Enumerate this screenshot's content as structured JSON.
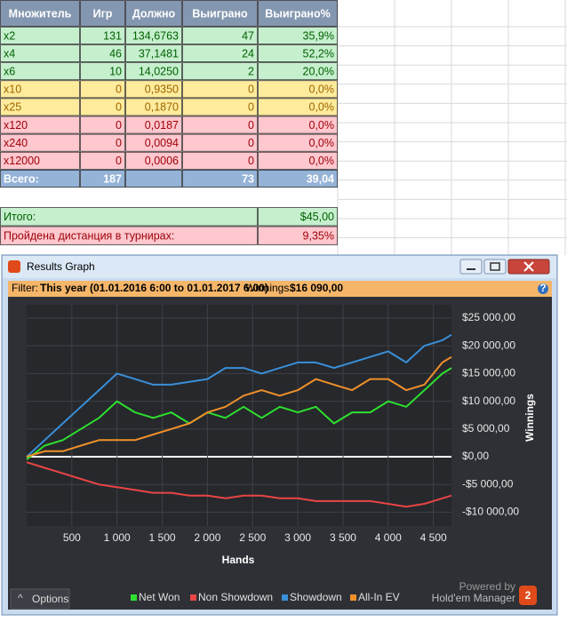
{
  "table": {
    "header": [
      "Множитель",
      "Игр",
      "Должно",
      "Выиграно",
      "Выиграно%"
    ],
    "rows": [
      [
        "x2",
        "131",
        "134,6763",
        "47",
        "35,9%"
      ],
      [
        "x4",
        "46",
        "37,1481",
        "24",
        "52,2%"
      ],
      [
        "x6",
        "10",
        "14,0250",
        "2",
        "20,0%"
      ],
      [
        "x10",
        "0",
        "0,9350",
        "0",
        "0,0%"
      ],
      [
        "x25",
        "0",
        "0,1870",
        "0",
        "0,0%"
      ],
      [
        "x120",
        "0",
        "0,0187",
        "0",
        "0,0%"
      ],
      [
        "x240",
        "0",
        "0,0094",
        "0",
        "0,0%"
      ],
      [
        "x12000",
        "0",
        "0,0006",
        "0",
        "0,0%"
      ]
    ],
    "total": [
      "Всего:",
      "187",
      "73",
      "39,04"
    ]
  },
  "summary": [
    [
      "Итого:",
      "$45,00"
    ],
    [
      "Пройдена дистанция в турнирах:",
      "9,35%"
    ]
  ],
  "window": {
    "title": "Results Graph",
    "filter_label": "Filter:",
    "filter_value": "This year (01.01.2016 6:00 to 01.01.2017 6:00)",
    "winnings_label": "Winnings:",
    "winnings_value": "$16 090,00",
    "options": "Options",
    "powered_by": "Powered by",
    "brand": "Hold'em Manager",
    "brand_mark": "2"
  },
  "chart_data": {
    "type": "line",
    "x_label": "Hands",
    "y_label": "Winnings",
    "grid": true,
    "x": [
      0,
      200,
      400,
      600,
      800,
      1000,
      1200,
      1400,
      1600,
      1800,
      2000,
      2200,
      2400,
      2600,
      2800,
      3000,
      3200,
      3400,
      3600,
      3800,
      4000,
      4200,
      4400,
      4600,
      4700
    ],
    "xlim": [
      0,
      4700
    ],
    "xticks": [
      500,
      {
        "value": 1000,
        "label": "1 000"
      },
      {
        "value": 1500,
        "label": "1 500"
      },
      {
        "value": 2000,
        "label": "2 000"
      },
      {
        "value": 2500,
        "label": "2 500"
      },
      {
        "value": 3000,
        "label": "3 000"
      },
      {
        "value": 3500,
        "label": "3 500"
      },
      {
        "value": 4000,
        "label": "4 000"
      },
      {
        "value": 4500,
        "label": "4 500"
      }
    ],
    "ylim": [
      -12500,
      27400
    ],
    "yticks": [
      {
        "value": 25000,
        "label": "$25 000,00"
      },
      {
        "value": 20000,
        "label": "$20 000,00"
      },
      {
        "value": 15000,
        "label": "$15 000,00"
      },
      {
        "value": 10000,
        "label": "$10 000,00"
      },
      {
        "value": 5000,
        "label": "$5 000,00"
      },
      {
        "value": 0,
        "label": "$0,00"
      },
      {
        "value": -5000,
        "label": "-$5 000,00"
      },
      {
        "value": -10000,
        "label": "-$10 000,00"
      }
    ],
    "series": [
      {
        "name": "Net Won",
        "color": "#2ee02e",
        "values": [
          -500,
          2000,
          3000,
          5000,
          7000,
          10000,
          8000,
          7000,
          8000,
          6000,
          8000,
          7000,
          9000,
          7000,
          9000,
          8000,
          9000,
          6000,
          8000,
          8000,
          10000,
          9000,
          12000,
          15000,
          16000
        ]
      },
      {
        "name": "Non Showdown",
        "color": "#e84545",
        "values": [
          -1000,
          -2000,
          -3000,
          -4000,
          -5000,
          -5500,
          -6000,
          -6500,
          -6500,
          -7000,
          -7000,
          -7500,
          -7000,
          -7000,
          -7500,
          -7500,
          -8000,
          -8000,
          -8000,
          -8000,
          -8500,
          -9000,
          -8500,
          -7500,
          -7000
        ]
      },
      {
        "name": "Showdown",
        "color": "#3a8fd8",
        "values": [
          0,
          3000,
          6000,
          9000,
          12000,
          15000,
          14000,
          13000,
          13000,
          13500,
          14000,
          16000,
          16000,
          15000,
          16000,
          17000,
          17000,
          16000,
          17000,
          18000,
          19000,
          17000,
          20000,
          21000,
          22000
        ]
      },
      {
        "name": "All-In EV",
        "color": "#f0902a",
        "values": [
          0,
          1000,
          1000,
          2000,
          3000,
          3000,
          3000,
          4000,
          5000,
          6000,
          8000,
          9000,
          11000,
          12000,
          11000,
          12000,
          14000,
          13000,
          12000,
          14000,
          14000,
          12000,
          13000,
          17000,
          18000
        ]
      }
    ]
  }
}
